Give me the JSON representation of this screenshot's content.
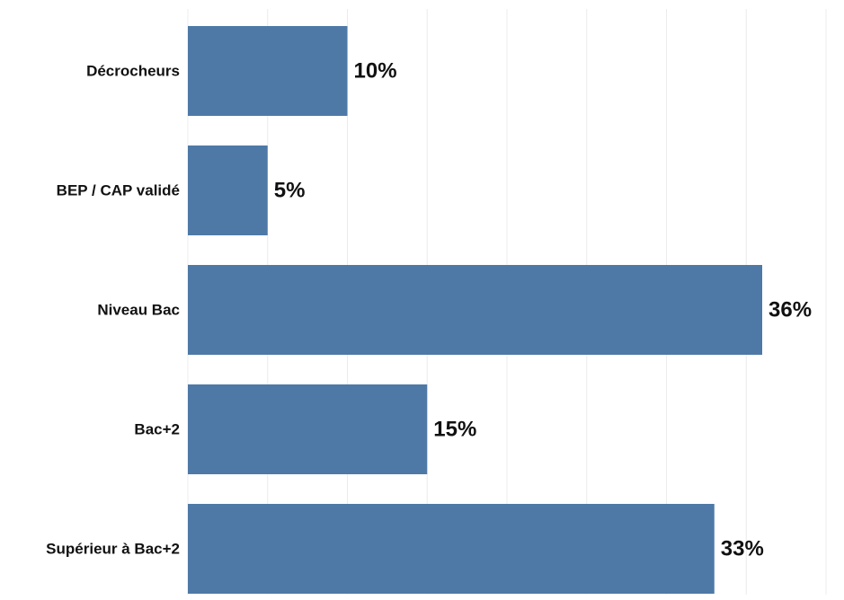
{
  "chart_data": {
    "type": "bar",
    "orientation": "horizontal",
    "categories": [
      "Décrocheurs",
      "BEP / CAP validé",
      "Niveau Bac",
      "Bac+2",
      "Supérieur à Bac+2"
    ],
    "values": [
      10,
      5,
      36,
      15,
      33
    ],
    "value_labels": [
      "10%",
      "5%",
      "36%",
      "15%",
      "33%"
    ],
    "title": "",
    "xlabel": "",
    "ylabel": "",
    "xlim": [
      0,
      40
    ],
    "grid": "vertical",
    "legend": "none",
    "colors": {
      "bar": "#4e79a7",
      "grid": "#ececec",
      "text": "#111111"
    }
  }
}
